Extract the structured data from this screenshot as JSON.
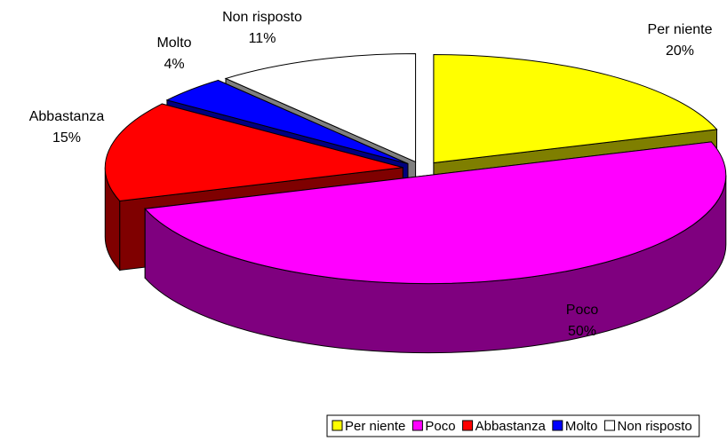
{
  "chart_data": {
    "type": "pie3d",
    "categories": [
      "Per niente",
      "Poco",
      "Abbastanza",
      "Molto",
      "Non risposto"
    ],
    "values": [
      20,
      50,
      15,
      4,
      11
    ],
    "value_labels": [
      "20%",
      "50%",
      "15%",
      "4%",
      "11%"
    ],
    "colors": [
      "#ffff00",
      "#ff00ff",
      "#ff0000",
      "#0000ff",
      "#ffffff"
    ],
    "legend": "bottom"
  }
}
